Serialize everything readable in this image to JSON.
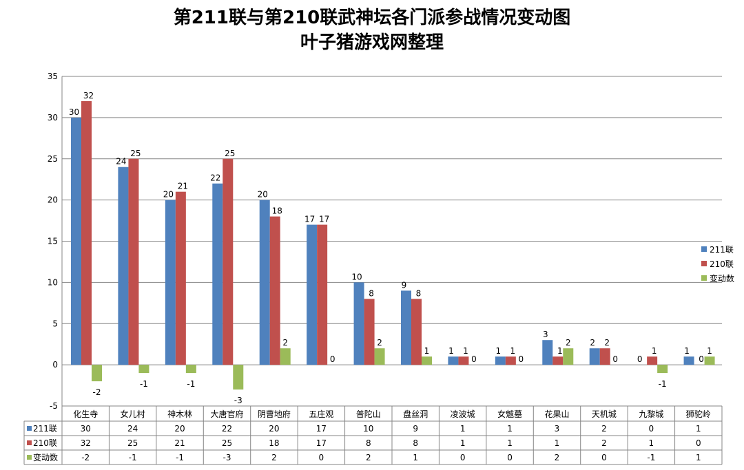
{
  "chart_data": {
    "type": "bar",
    "title": "第211联与第210联武神坛各门派参战情况变动图",
    "subtitle": "叶子猪游戏网整理",
    "categories": [
      "化生寺",
      "女儿村",
      "神木林",
      "大唐官府",
      "阴曹地府",
      "五庄观",
      "普陀山",
      "盘丝洞",
      "凌波城",
      "女魃墓",
      "花果山",
      "天机城",
      "九黎城",
      "狮驼岭"
    ],
    "series": [
      {
        "name": "211联",
        "color": "#4f81bd",
        "values": [
          30,
          24,
          20,
          22,
          20,
          17,
          10,
          9,
          1,
          1,
          3,
          2,
          0,
          1
        ]
      },
      {
        "name": "210联",
        "color": "#c0504d",
        "values": [
          32,
          25,
          21,
          25,
          18,
          17,
          8,
          8,
          1,
          1,
          1,
          2,
          1,
          0
        ]
      },
      {
        "name": "变动数",
        "color": "#9bbb59",
        "values": [
          -2,
          -1,
          -1,
          -3,
          2,
          0,
          2,
          1,
          0,
          0,
          2,
          0,
          -1,
          1
        ]
      }
    ],
    "ylim": [
      -5,
      35
    ],
    "yticks": [
      -5,
      0,
      5,
      10,
      15,
      20,
      25,
      30,
      35
    ],
    "grid": true,
    "legend": "right",
    "data_table": true
  }
}
